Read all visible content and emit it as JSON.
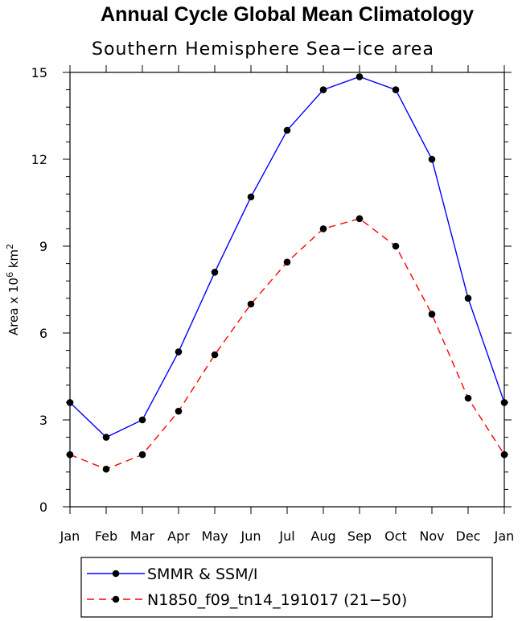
{
  "chart_data": {
    "type": "line",
    "title": "Annual Cycle Global Mean Climatology",
    "subtitle": "Southern Hemisphere Sea−ice area",
    "ylabel_main": "Area x 10",
    "ylabel_exp": "6",
    "ylabel_unit": " km",
    "ylabel_unit_exp": "2",
    "categories": [
      "Jan",
      "Feb",
      "Mar",
      "Apr",
      "May",
      "Jun",
      "Jul",
      "Aug",
      "Sep",
      "Oct",
      "Nov",
      "Dec",
      "Jan"
    ],
    "ylim": [
      0,
      15
    ],
    "yticks": [
      0,
      3,
      6,
      9,
      12,
      15
    ],
    "yticks_labels": [
      "0",
      "3",
      "6",
      "9",
      "12",
      "15"
    ],
    "grid": false,
    "legend_position": "bottom",
    "series": [
      {
        "name": "SMMR & SSM/I",
        "color": "#0000ff",
        "dashed": false,
        "values": [
          3.6,
          2.4,
          3.0,
          5.35,
          8.1,
          10.7,
          13.0,
          14.4,
          14.85,
          14.4,
          12.0,
          7.2,
          3.6
        ]
      },
      {
        "name": "N1850_f09_tn14_191017 (21−50)",
        "color": "#ff0000",
        "dashed": true,
        "values": [
          1.8,
          1.3,
          1.8,
          3.3,
          5.25,
          7.0,
          8.45,
          9.6,
          9.95,
          9.0,
          6.65,
          3.75,
          1.8
        ]
      }
    ]
  }
}
